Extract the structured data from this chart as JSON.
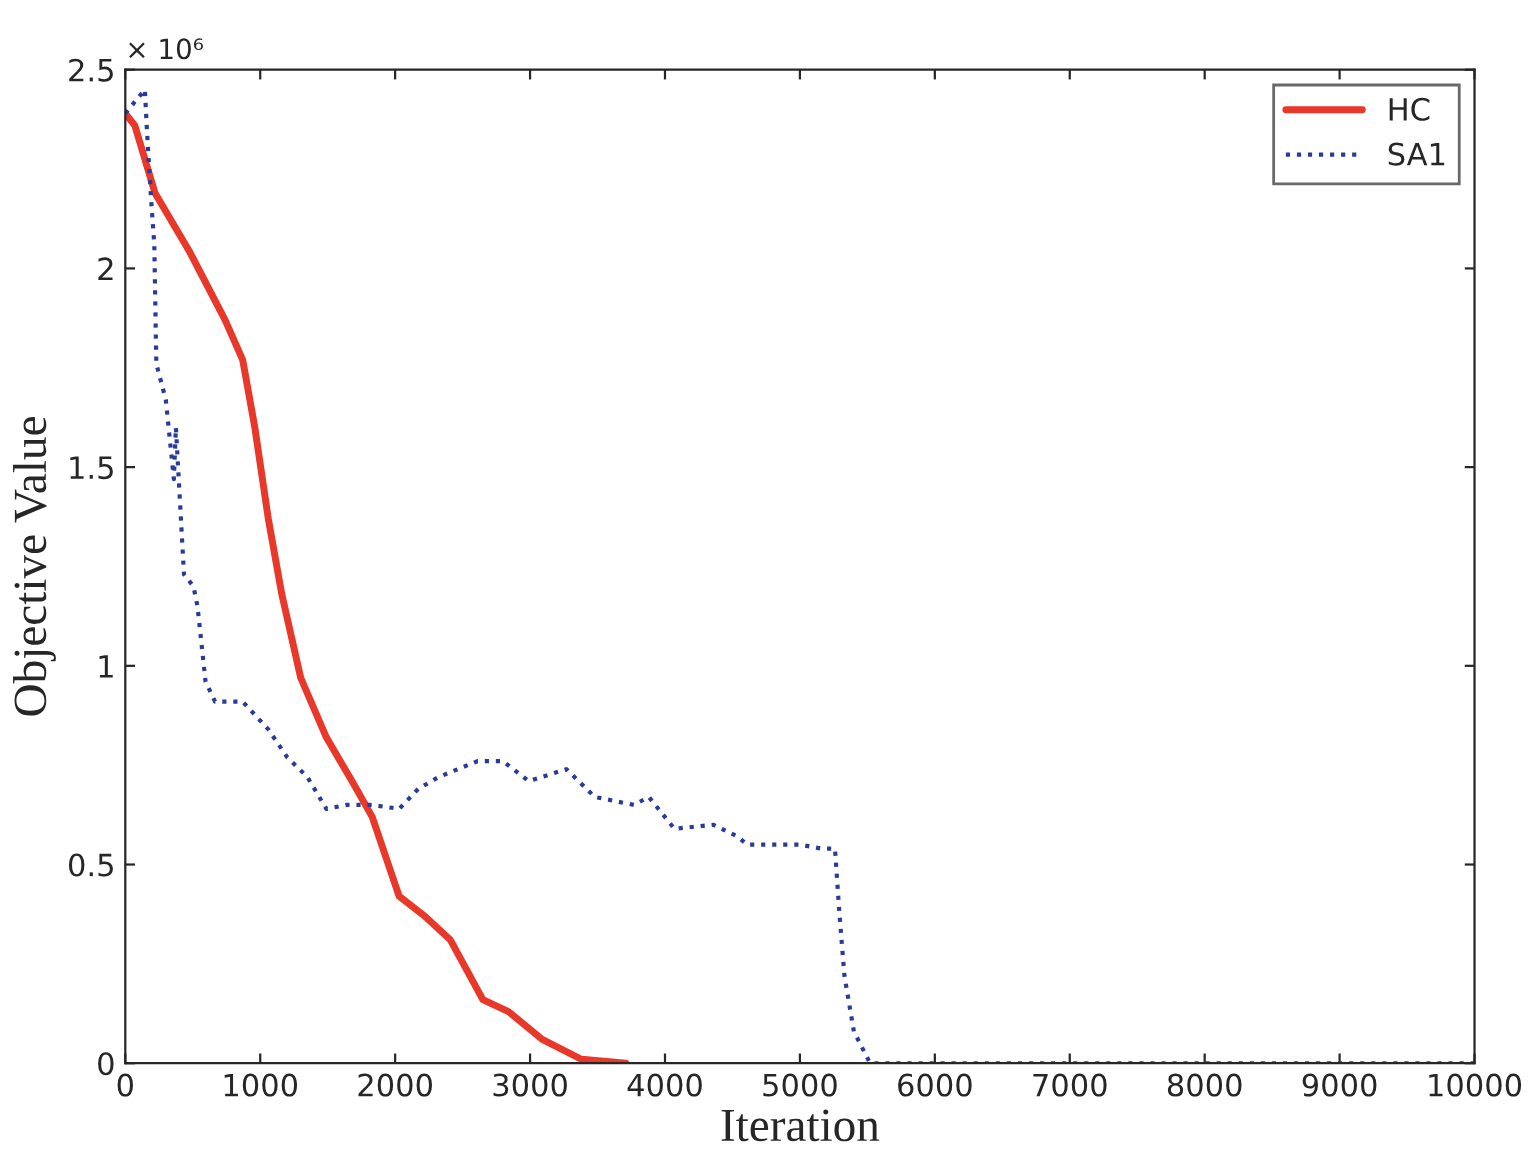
{
  "chart_data": {
    "type": "line",
    "xlabel": "Iteration",
    "ylabel": "Objective Value",
    "annotations": [
      "× 10⁶"
    ],
    "xlim": [
      0,
      10000
    ],
    "xticks": [
      0,
      1000,
      2000,
      3000,
      4000,
      5000,
      6000,
      7000,
      8000,
      9000,
      10000
    ],
    "ylim": [
      0,
      2.5
    ],
    "yticks": [
      0,
      0.5,
      1,
      1.5,
      2,
      2.5
    ],
    "grid": false,
    "legend": "top right",
    "series": [
      {
        "name": "HC",
        "color": "#e8382a",
        "line_style": "solid",
        "x": [
          0,
          70,
          220,
          480,
          740,
          870,
          960,
          1060,
          1160,
          1300,
          1490,
          1680,
          1830,
          1930,
          2030,
          2220,
          2410,
          2650,
          2840,
          3090,
          3380,
          3710
        ],
        "values": [
          2.39,
          2.36,
          2.19,
          2.04,
          1.87,
          1.77,
          1.6,
          1.37,
          1.18,
          0.97,
          0.82,
          0.71,
          0.62,
          0.52,
          0.42,
          0.37,
          0.31,
          0.16,
          0.13,
          0.06,
          0.01,
          0
        ]
      },
      {
        "name": "SA1",
        "color": "#2a3a9a",
        "line_style": "dotted",
        "x": [
          0,
          145,
          160,
          190,
          215,
          230,
          300,
          360,
          375,
          435,
          505,
          535,
          595,
          665,
          870,
          1060,
          1200,
          1350,
          1490,
          1640,
          1830,
          2030,
          2170,
          2320,
          2610,
          2800,
          2990,
          3270,
          3480,
          3770,
          3880,
          4070,
          4360,
          4540,
          4610,
          5000,
          5160,
          5260,
          5290,
          5330,
          5400,
          5520,
          10000
        ],
        "values": [
          2.39,
          2.45,
          2.35,
          2.18,
          2.06,
          1.76,
          1.67,
          1.47,
          1.6,
          1.23,
          1.2,
          1.15,
          0.96,
          0.91,
          0.91,
          0.84,
          0.77,
          0.72,
          0.64,
          0.65,
          0.65,
          0.64,
          0.69,
          0.72,
          0.76,
          0.76,
          0.71,
          0.74,
          0.67,
          0.65,
          0.67,
          0.59,
          0.6,
          0.57,
          0.55,
          0.55,
          0.54,
          0.54,
          0.39,
          0.22,
          0.08,
          0,
          0
        ]
      }
    ]
  }
}
